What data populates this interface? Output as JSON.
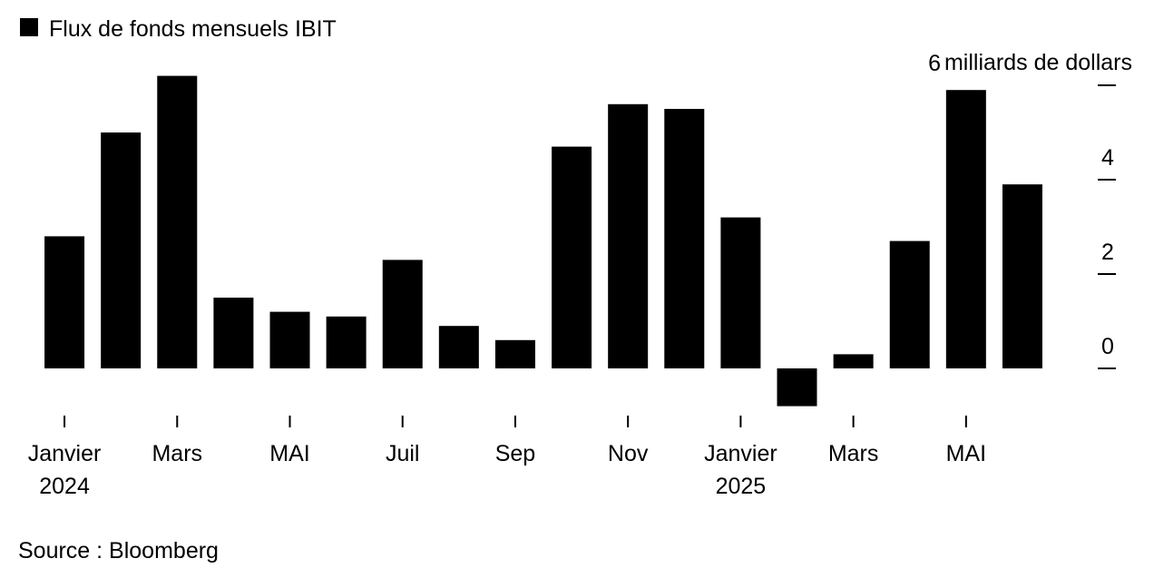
{
  "chart_data": {
    "type": "bar",
    "series": [
      {
        "name": "Flux de fonds mensuels IBIT",
        "color": "#000000",
        "values": [
          2.8,
          5.0,
          6.2,
          1.5,
          1.2,
          1.1,
          2.3,
          0.9,
          0.6,
          4.7,
          5.6,
          5.5,
          3.2,
          -0.8,
          0.3,
          2.7,
          5.9,
          3.9
        ]
      }
    ],
    "categories": [
      "Janvier 2024",
      null,
      "Mars",
      null,
      "MAI",
      null,
      "Juil",
      null,
      "Sep",
      null,
      "Nov",
      null,
      "Janvier 2025",
      null,
      "Mars",
      null,
      "MAI",
      null
    ],
    "y_label": "milliards de dollars",
    "ylim": [
      -1,
      6.5
    ],
    "yticks": [
      0,
      2,
      4,
      6
    ],
    "source": "Source : Bloomberg"
  }
}
